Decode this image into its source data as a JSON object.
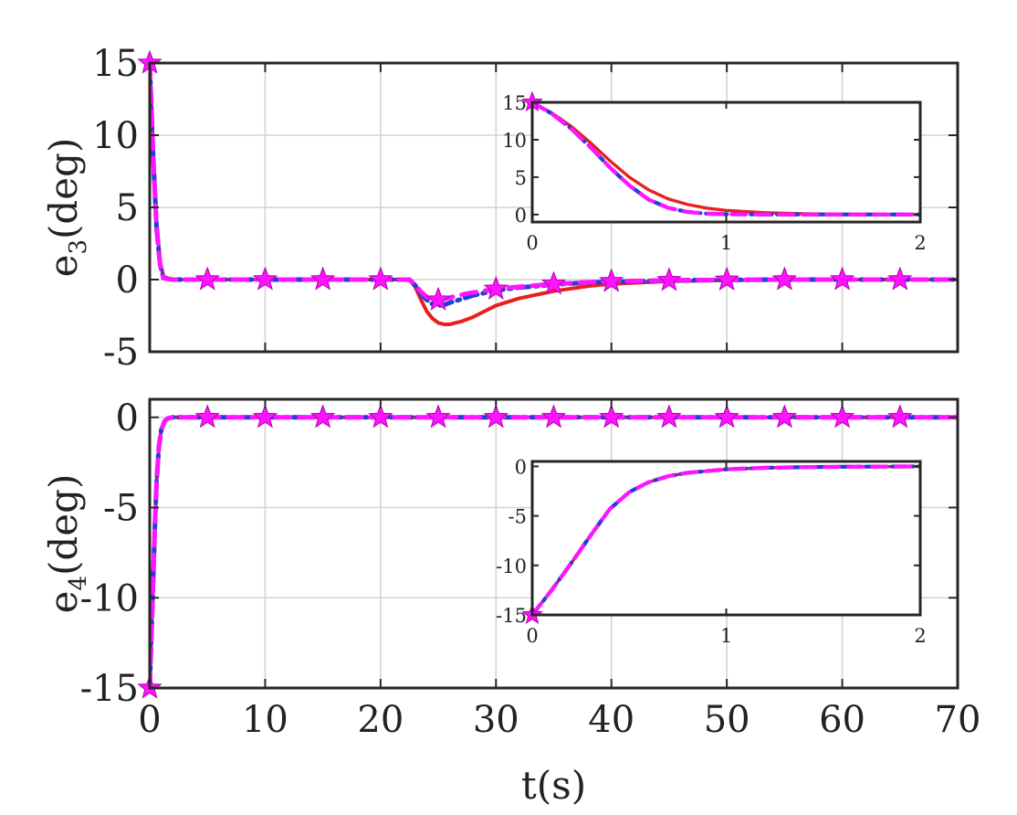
{
  "chart_data": [
    {
      "type": "line",
      "panel": "top",
      "ylabel": {
        "base": "e",
        "sub": "3",
        "rest": "(deg)"
      },
      "xlabel": "",
      "xlim": [
        0,
        70
      ],
      "ylim": [
        -5,
        15
      ],
      "xticks": [
        0,
        10,
        20,
        30,
        40,
        50,
        60,
        70
      ],
      "yticks": [
        -5,
        0,
        5,
        10,
        15
      ],
      "xtick_labels_shown": false,
      "grid": true,
      "series": [
        {
          "color": "#e8201c",
          "style": "solid",
          "marker": "none",
          "x": [
            0,
            0.3,
            0.6,
            0.9,
            1.2,
            2,
            5,
            10,
            15,
            20,
            22.5,
            23,
            23.5,
            24,
            24.5,
            25,
            25.5,
            26,
            27,
            28,
            29,
            30,
            32,
            35,
            38,
            40,
            45,
            50,
            55,
            60,
            65,
            70
          ],
          "y": [
            15,
            9,
            4,
            1.2,
            0.2,
            0,
            0,
            0,
            0,
            0,
            0,
            -0.5,
            -1.4,
            -2.2,
            -2.7,
            -3.0,
            -3.1,
            -3.1,
            -2.9,
            -2.6,
            -2.2,
            -1.8,
            -1.3,
            -0.8,
            -0.45,
            -0.3,
            -0.12,
            -0.05,
            -0.02,
            0,
            0,
            0
          ]
        },
        {
          "color": "#1f3fd6",
          "style": "dashdot",
          "marker": "none",
          "x": [
            0,
            0.3,
            0.6,
            0.9,
            1.2,
            2,
            5,
            10,
            15,
            20,
            22.5,
            23,
            23.5,
            24,
            24.5,
            25,
            25.5,
            26,
            27,
            28,
            30,
            32,
            35,
            38,
            40,
            45,
            50,
            55,
            60,
            65,
            70
          ],
          "y": [
            15,
            8.5,
            3.5,
            1,
            0.1,
            0,
            0,
            0,
            0,
            0,
            0,
            -0.4,
            -1.0,
            -1.4,
            -1.7,
            -1.8,
            -1.75,
            -1.6,
            -1.35,
            -1.1,
            -0.75,
            -0.55,
            -0.35,
            -0.2,
            -0.15,
            -0.06,
            -0.02,
            0,
            0,
            0,
            0
          ]
        },
        {
          "color": "#ff14ff",
          "style": "dashed",
          "marker": "star",
          "markers_x": [
            0,
            5,
            10,
            15,
            20,
            25,
            30,
            35,
            40,
            45,
            50,
            55,
            60,
            65
          ],
          "x": [
            0,
            0.3,
            0.6,
            0.9,
            1.2,
            2,
            5,
            10,
            15,
            20,
            22.5,
            23,
            23.5,
            24,
            24.5,
            25,
            25.5,
            26,
            27,
            28,
            30,
            32,
            35,
            38,
            40,
            45,
            50,
            55,
            60,
            65,
            70
          ],
          "y": [
            15,
            8.5,
            3.5,
            1,
            0.1,
            0,
            0,
            0,
            0,
            0,
            0,
            -0.35,
            -0.85,
            -1.2,
            -1.35,
            -1.4,
            -1.35,
            -1.25,
            -1.05,
            -0.9,
            -0.65,
            -0.5,
            -0.3,
            -0.18,
            -0.12,
            -0.05,
            -0.02,
            0,
            0,
            0,
            0
          ]
        }
      ]
    },
    {
      "type": "line",
      "panel": "top-inset",
      "xlim": [
        0,
        2
      ],
      "ylim": [
        -1,
        15
      ],
      "xticks": [
        0,
        1,
        2
      ],
      "yticks": [
        0,
        5,
        10,
        15
      ],
      "grid": false,
      "series": [
        {
          "color": "#e8201c",
          "style": "solid",
          "marker": "none",
          "x": [
            0,
            0.1,
            0.2,
            0.3,
            0.4,
            0.5,
            0.6,
            0.7,
            0.8,
            0.9,
            1.0,
            1.2,
            1.4,
            1.6,
            1.8,
            2.0
          ],
          "y": [
            15,
            13.6,
            11.8,
            9.6,
            7.2,
            5.0,
            3.3,
            2.1,
            1.35,
            0.85,
            0.55,
            0.25,
            0.1,
            0.05,
            0.02,
            0
          ]
        },
        {
          "color": "#1f3fd6",
          "style": "dashdot",
          "marker": "none",
          "x": [
            0,
            0.1,
            0.2,
            0.3,
            0.4,
            0.5,
            0.6,
            0.7,
            0.8,
            0.9,
            1.0,
            1.2,
            1.4,
            1.6,
            1.8,
            2.0
          ],
          "y": [
            15,
            13.5,
            11.5,
            9.0,
            6.3,
            3.9,
            2.0,
            0.9,
            0.35,
            0.12,
            0.05,
            0.01,
            0,
            0,
            0,
            0
          ]
        },
        {
          "color": "#ff14ff",
          "style": "dashed",
          "marker": "star",
          "markers_x": [
            0
          ],
          "x": [
            0,
            0.1,
            0.2,
            0.3,
            0.4,
            0.5,
            0.6,
            0.7,
            0.8,
            0.9,
            1.0,
            1.2,
            1.4,
            1.6,
            1.8,
            2.0
          ],
          "y": [
            15,
            13.5,
            11.5,
            9.0,
            6.3,
            3.9,
            2.0,
            0.9,
            0.35,
            0.12,
            0.05,
            0.01,
            0,
            0,
            0,
            0
          ]
        }
      ]
    },
    {
      "type": "line",
      "panel": "bottom",
      "ylabel": {
        "base": "e",
        "sub": "4",
        "rest": "(deg)"
      },
      "xlabel": "t(s)",
      "xlim": [
        0,
        70
      ],
      "ylim": [
        -15,
        1
      ],
      "xticks": [
        0,
        10,
        20,
        30,
        40,
        50,
        60,
        70
      ],
      "yticks": [
        -15,
        -10,
        -5,
        0
      ],
      "xtick_labels_shown": true,
      "grid": true,
      "series": [
        {
          "color": "#e8201c",
          "style": "solid",
          "marker": "none",
          "x": [
            0,
            0.15,
            0.3,
            0.45,
            0.6,
            0.8,
            1.0,
            1.3,
            1.6,
            2,
            5,
            10,
            20,
            30,
            40,
            50,
            60,
            70
          ],
          "y": [
            -15,
            -12,
            -9,
            -6,
            -3.5,
            -1.6,
            -0.7,
            -0.2,
            -0.05,
            0,
            0,
            0,
            0,
            0,
            0,
            0,
            0,
            0
          ]
        },
        {
          "color": "#1f3fd6",
          "style": "dashdot",
          "marker": "none",
          "x": [
            0,
            0.15,
            0.3,
            0.45,
            0.6,
            0.8,
            1.0,
            1.3,
            1.6,
            2,
            5,
            10,
            20,
            30,
            40,
            50,
            60,
            70
          ],
          "y": [
            -15,
            -12,
            -9,
            -6,
            -3.5,
            -1.6,
            -0.7,
            -0.2,
            -0.05,
            0,
            0,
            0,
            0,
            0,
            0,
            0,
            0,
            0
          ]
        },
        {
          "color": "#ff14ff",
          "style": "dashed",
          "marker": "star",
          "markers_x": [
            0,
            5,
            10,
            15,
            20,
            25,
            30,
            35,
            40,
            45,
            50,
            55,
            60,
            65
          ],
          "x": [
            0,
            0.15,
            0.3,
            0.45,
            0.6,
            0.8,
            1.0,
            1.3,
            1.6,
            2,
            5,
            10,
            20,
            30,
            40,
            50,
            60,
            70
          ],
          "y": [
            -15,
            -12,
            -9,
            -6,
            -3.5,
            -1.6,
            -0.7,
            -0.2,
            -0.05,
            0,
            0,
            0,
            0,
            0,
            0,
            0,
            0,
            0
          ]
        }
      ]
    },
    {
      "type": "line",
      "panel": "bottom-inset",
      "xlim": [
        0,
        2
      ],
      "ylim": [
        -15,
        0.5
      ],
      "xticks": [
        0,
        1,
        2
      ],
      "yticks": [
        -15,
        -10,
        -5,
        0
      ],
      "grid": false,
      "series": [
        {
          "color": "#e8201c",
          "style": "solid",
          "marker": "none",
          "x": [
            0,
            0.1,
            0.2,
            0.3,
            0.4,
            0.5,
            0.6,
            0.7,
            0.8,
            1.0,
            1.2,
            1.4,
            1.6,
            1.8,
            2.0
          ],
          "y": [
            -15,
            -12.5,
            -9.8,
            -7.0,
            -4.3,
            -2.6,
            -1.6,
            -1.0,
            -0.65,
            -0.3,
            -0.15,
            -0.08,
            -0.04,
            -0.02,
            0
          ]
        },
        {
          "color": "#1f3fd6",
          "style": "dashdot",
          "marker": "none",
          "x": [
            0,
            0.1,
            0.2,
            0.3,
            0.4,
            0.5,
            0.6,
            0.7,
            0.8,
            1.0,
            1.2,
            1.4,
            1.6,
            1.8,
            2.0
          ],
          "y": [
            -15,
            -12.5,
            -9.8,
            -7.0,
            -4.3,
            -2.6,
            -1.6,
            -1.0,
            -0.65,
            -0.3,
            -0.15,
            -0.08,
            -0.04,
            -0.02,
            0
          ]
        },
        {
          "color": "#ff14ff",
          "style": "dashed",
          "marker": "star",
          "markers_x": [
            0
          ],
          "x": [
            0,
            0.1,
            0.2,
            0.3,
            0.4,
            0.5,
            0.6,
            0.7,
            0.8,
            1.0,
            1.2,
            1.4,
            1.6,
            1.8,
            2.0
          ],
          "y": [
            -15,
            -12.5,
            -9.8,
            -7.0,
            -4.3,
            -2.6,
            -1.6,
            -1.0,
            -0.65,
            -0.3,
            -0.15,
            -0.08,
            -0.04,
            -0.02,
            0
          ]
        }
      ]
    }
  ]
}
